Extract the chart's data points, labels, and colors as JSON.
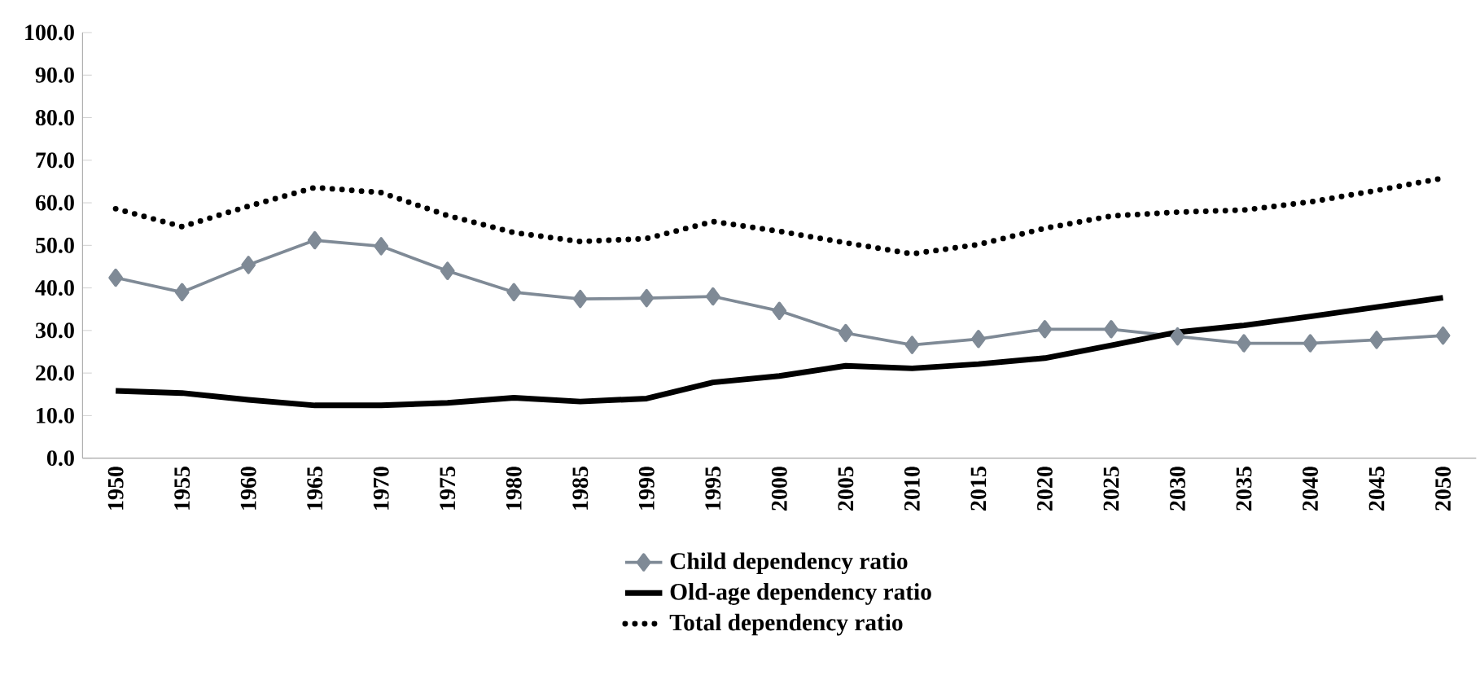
{
  "chart_data": {
    "type": "line",
    "categories": [
      "1950",
      "1955",
      "1960",
      "1965",
      "1970",
      "1975",
      "1980",
      "1985",
      "1990",
      "1995",
      "2000",
      "2005",
      "2010",
      "2015",
      "2020",
      "2025",
      "2030",
      "2035",
      "2040",
      "2045",
      "2050"
    ],
    "series": [
      {
        "name": "Child dependency ratio",
        "color": "#7f8a96",
        "marker": "diamond",
        "line_style": "solid",
        "values": [
          42.4,
          39.0,
          45.4,
          51.2,
          49.8,
          44.0,
          39.0,
          37.4,
          37.6,
          38.0,
          34.6,
          29.4,
          26.6,
          28.0,
          30.3,
          30.3,
          28.6,
          27.0,
          27.0,
          27.8,
          28.8
        ]
      },
      {
        "name": "Old-age dependency ratio",
        "color": "#000000",
        "marker": "none",
        "line_style": "solid",
        "values": [
          15.8,
          15.3,
          13.7,
          12.4,
          12.4,
          13.0,
          14.2,
          13.3,
          14.0,
          17.8,
          19.3,
          21.7,
          21.1,
          22.1,
          23.5,
          26.5,
          29.6,
          31.2,
          33.3,
          35.5,
          37.7
        ]
      },
      {
        "name": "Total dependency ratio",
        "color": "#000000",
        "marker": "none",
        "line_style": "dotted",
        "values": [
          58.6,
          54.4,
          59.2,
          63.6,
          62.4,
          57.0,
          53.0,
          50.9,
          51.6,
          55.6,
          53.3,
          50.6,
          48.0,
          50.2,
          54.0,
          56.9,
          57.8,
          58.3,
          60.2,
          62.9,
          65.8
        ]
      }
    ],
    "ylim": [
      0,
      100
    ],
    "yticks": [
      {
        "value": 0,
        "label": "0.0"
      },
      {
        "value": 10,
        "label": "10.0"
      },
      {
        "value": 20,
        "label": "20.0"
      },
      {
        "value": 30,
        "label": "30.0"
      },
      {
        "value": 40,
        "label": "40.0"
      },
      {
        "value": 50,
        "label": "50.0"
      },
      {
        "value": 60,
        "label": "60.0"
      },
      {
        "value": 70,
        "label": "70.0"
      },
      {
        "value": 80,
        "label": "80.0"
      },
      {
        "value": 90,
        "label": "90.0"
      },
      {
        "value": 100,
        "label": "100.0"
      }
    ],
    "grid": false,
    "legend": "bottom"
  }
}
